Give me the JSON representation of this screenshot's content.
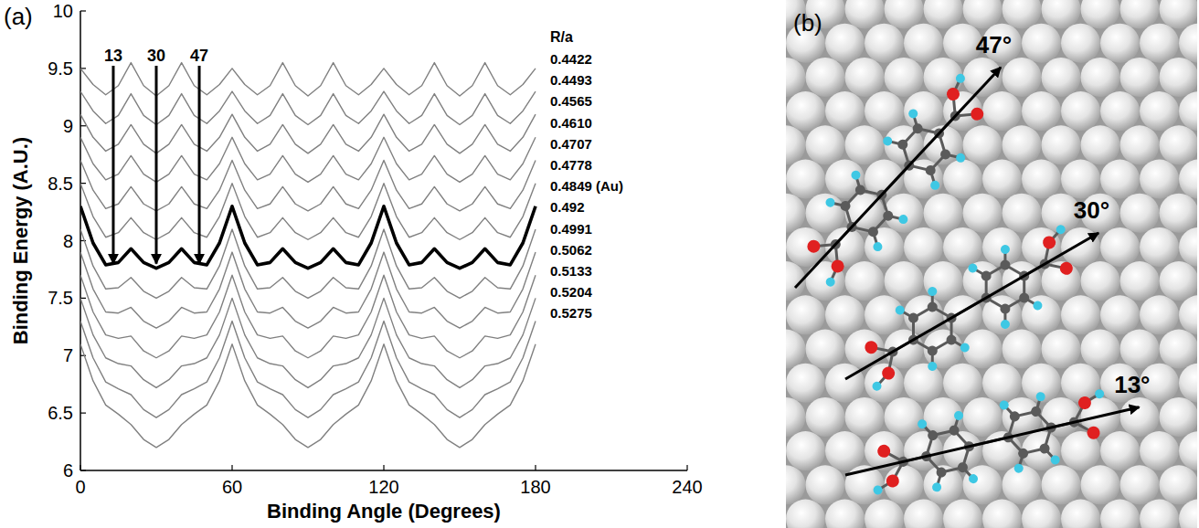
{
  "chart_data": {
    "type": "line",
    "panel": "(a)",
    "x_label": "Binding Angle (Degrees)",
    "y_label": "Binding Energy (A.U.)",
    "xlim": [
      0,
      240
    ],
    "ylim": [
      6,
      10
    ],
    "xticks": [
      0,
      60,
      120,
      180,
      240
    ],
    "yticks": [
      6,
      6.5,
      7,
      7.5,
      8,
      8.5,
      9,
      9.5,
      10
    ],
    "grid": false,
    "legend": "right",
    "legend_title": "R/a",
    "x": [
      0,
      5,
      10,
      15,
      20,
      25,
      30,
      35,
      40,
      45,
      50,
      55,
      60,
      65,
      70,
      75,
      80,
      85,
      90,
      95,
      100,
      105,
      110,
      115,
      120,
      125,
      130,
      135,
      140,
      145,
      150,
      155,
      160,
      165,
      170,
      175,
      180
    ],
    "series": [
      {
        "name": "0.4422",
        "color": "#808080",
        "line_style": "solid",
        "values": [
          9.5,
          9.36,
          9.27,
          9.35,
          9.55,
          9.35,
          9.26,
          9.35,
          9.55,
          9.35,
          9.27,
          9.36,
          9.5,
          9.36,
          9.27,
          9.35,
          9.55,
          9.35,
          9.26,
          9.35,
          9.55,
          9.35,
          9.27,
          9.36,
          9.5,
          9.36,
          9.27,
          9.35,
          9.55,
          9.35,
          9.26,
          9.35,
          9.55,
          9.35,
          9.27,
          9.36,
          9.5
        ]
      },
      {
        "name": "0.4493",
        "color": "#808080",
        "line_style": "solid",
        "values": [
          9.3,
          9.13,
          9.02,
          9.09,
          9.28,
          9.09,
          9.01,
          9.09,
          9.28,
          9.09,
          9.02,
          9.13,
          9.3,
          9.13,
          9.02,
          9.09,
          9.28,
          9.09,
          9.01,
          9.09,
          9.28,
          9.09,
          9.02,
          9.13,
          9.3,
          9.13,
          9.02,
          9.09,
          9.28,
          9.09,
          9.01,
          9.09,
          9.28,
          9.09,
          9.02,
          9.13,
          9.3
        ]
      },
      {
        "name": "0.4565",
        "color": "#808080",
        "line_style": "solid",
        "values": [
          9.1,
          8.9,
          8.78,
          8.84,
          9.01,
          8.84,
          8.76,
          8.84,
          9.01,
          8.84,
          8.78,
          8.9,
          9.1,
          8.9,
          8.78,
          8.84,
          9.01,
          8.84,
          8.76,
          8.84,
          9.01,
          8.84,
          8.78,
          8.9,
          9.1,
          8.9,
          8.78,
          8.84,
          9.01,
          8.84,
          8.76,
          8.84,
          9.01,
          8.84,
          8.78,
          8.9,
          9.1
        ]
      },
      {
        "name": "0.4610",
        "color": "#808080",
        "line_style": "solid",
        "values": [
          8.9,
          8.67,
          8.53,
          8.58,
          8.74,
          8.58,
          8.51,
          8.58,
          8.74,
          8.58,
          8.53,
          8.67,
          8.9,
          8.67,
          8.53,
          8.58,
          8.74,
          8.58,
          8.51,
          8.58,
          8.74,
          8.58,
          8.53,
          8.67,
          8.9,
          8.67,
          8.53,
          8.58,
          8.74,
          8.58,
          8.51,
          8.58,
          8.74,
          8.58,
          8.53,
          8.67,
          8.9
        ]
      },
      {
        "name": "0.4707",
        "color": "#808080",
        "line_style": "solid",
        "values": [
          8.7,
          8.44,
          8.28,
          8.32,
          8.47,
          8.32,
          8.26,
          8.32,
          8.47,
          8.32,
          8.28,
          8.44,
          8.7,
          8.44,
          8.28,
          8.32,
          8.47,
          8.32,
          8.26,
          8.32,
          8.47,
          8.32,
          8.28,
          8.44,
          8.7,
          8.44,
          8.28,
          8.32,
          8.47,
          8.32,
          8.26,
          8.32,
          8.47,
          8.32,
          8.28,
          8.44,
          8.7
        ]
      },
      {
        "name": "0.4778",
        "color": "#808080",
        "line_style": "solid",
        "values": [
          8.5,
          8.21,
          8.03,
          8.07,
          8.2,
          8.07,
          8.01,
          8.07,
          8.2,
          8.07,
          8.03,
          8.21,
          8.5,
          8.21,
          8.03,
          8.07,
          8.2,
          8.07,
          8.01,
          8.07,
          8.2,
          8.07,
          8.03,
          8.21,
          8.5,
          8.21,
          8.03,
          8.07,
          8.2,
          8.07,
          8.01,
          8.07,
          8.2,
          8.07,
          8.03,
          8.21,
          8.5
        ]
      },
      {
        "name": "0.4849 (Au)",
        "color": "#000000",
        "line_style": "bold",
        "values": [
          8.3,
          7.98,
          7.79,
          7.81,
          7.93,
          7.81,
          7.76,
          7.81,
          7.93,
          7.81,
          7.79,
          7.98,
          8.3,
          7.98,
          7.79,
          7.81,
          7.93,
          7.81,
          7.76,
          7.81,
          7.93,
          7.81,
          7.79,
          7.98,
          8.3,
          7.98,
          7.79,
          7.81,
          7.93,
          7.81,
          7.76,
          7.81,
          7.93,
          7.81,
          7.79,
          7.98,
          8.3
        ]
      },
      {
        "name": "0.492",
        "color": "#808080",
        "line_style": "solid",
        "values": [
          8.1,
          7.78,
          7.58,
          7.59,
          7.68,
          7.56,
          7.5,
          7.56,
          7.68,
          7.59,
          7.58,
          7.78,
          8.1,
          7.78,
          7.58,
          7.59,
          7.68,
          7.56,
          7.5,
          7.56,
          7.68,
          7.59,
          7.58,
          7.78,
          8.1,
          7.78,
          7.58,
          7.59,
          7.68,
          7.56,
          7.5,
          7.56,
          7.68,
          7.59,
          7.58,
          7.78,
          8.1
        ]
      },
      {
        "name": "0.4991",
        "color": "#808080",
        "line_style": "solid",
        "values": [
          7.9,
          7.58,
          7.38,
          7.37,
          7.42,
          7.3,
          7.24,
          7.3,
          7.42,
          7.37,
          7.38,
          7.58,
          7.9,
          7.58,
          7.38,
          7.37,
          7.42,
          7.3,
          7.24,
          7.3,
          7.42,
          7.37,
          7.38,
          7.58,
          7.9,
          7.58,
          7.38,
          7.37,
          7.42,
          7.3,
          7.24,
          7.3,
          7.42,
          7.37,
          7.38,
          7.58,
          7.9
        ]
      },
      {
        "name": "0.5062",
        "color": "#808080",
        "line_style": "solid",
        "values": [
          7.7,
          7.38,
          7.18,
          7.15,
          7.17,
          7.04,
          6.98,
          7.04,
          7.17,
          7.15,
          7.18,
          7.38,
          7.7,
          7.38,
          7.18,
          7.15,
          7.17,
          7.04,
          6.98,
          7.04,
          7.17,
          7.15,
          7.18,
          7.38,
          7.7,
          7.38,
          7.18,
          7.15,
          7.17,
          7.04,
          6.98,
          7.04,
          7.17,
          7.15,
          7.18,
          7.38,
          7.7
        ]
      },
      {
        "name": "0.5133",
        "color": "#808080",
        "line_style": "solid",
        "values": [
          7.5,
          7.18,
          6.98,
          6.93,
          6.91,
          6.79,
          6.72,
          6.79,
          6.91,
          6.93,
          6.98,
          7.18,
          7.5,
          7.18,
          6.98,
          6.93,
          6.91,
          6.79,
          6.72,
          6.79,
          6.91,
          6.93,
          6.98,
          7.18,
          7.5,
          7.18,
          6.98,
          6.93,
          6.91,
          6.79,
          6.72,
          6.79,
          6.91,
          6.93,
          6.98,
          7.18,
          7.5
        ]
      },
      {
        "name": "0.5204",
        "color": "#808080",
        "line_style": "solid",
        "values": [
          7.3,
          6.98,
          6.77,
          6.71,
          6.66,
          6.53,
          6.46,
          6.53,
          6.66,
          6.71,
          6.77,
          6.98,
          7.3,
          6.98,
          6.77,
          6.71,
          6.66,
          6.53,
          6.46,
          6.53,
          6.66,
          6.71,
          6.77,
          6.98,
          7.3,
          6.98,
          6.77,
          6.71,
          6.66,
          6.53,
          6.46,
          6.53,
          6.66,
          6.71,
          6.77,
          6.98,
          7.3
        ]
      },
      {
        "name": "0.5275",
        "color": "#808080",
        "line_style": "solid",
        "values": [
          7.1,
          6.78,
          6.57,
          6.49,
          6.4,
          6.27,
          6.2,
          6.27,
          6.4,
          6.49,
          6.57,
          6.78,
          7.1,
          6.78,
          6.57,
          6.49,
          6.4,
          6.27,
          6.2,
          6.27,
          6.4,
          6.49,
          6.57,
          6.78,
          7.1,
          6.78,
          6.57,
          6.49,
          6.4,
          6.27,
          6.2,
          6.27,
          6.4,
          6.49,
          6.57,
          6.78,
          7.1
        ]
      }
    ],
    "annotations": [
      {
        "text": "13",
        "x": 13,
        "y": 7.8
      },
      {
        "text": "30",
        "x": 30,
        "y": 7.8
      },
      {
        "text": "47",
        "x": 47,
        "y": 7.8
      }
    ]
  },
  "diagram": {
    "panel": "(b)",
    "arrows": [
      {
        "angle": 47,
        "label": "47°"
      },
      {
        "angle": 30,
        "label": "30°"
      },
      {
        "angle": 13,
        "label": "13°"
      }
    ]
  }
}
